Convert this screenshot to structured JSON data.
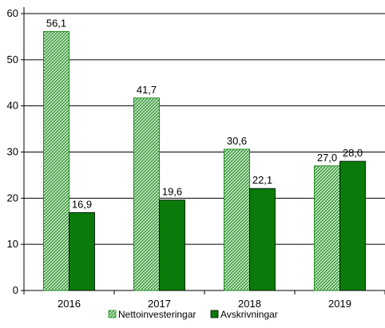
{
  "chart_data": {
    "type": "bar",
    "categories": [
      "2016",
      "2017",
      "2018",
      "2019"
    ],
    "series": [
      {
        "name": "Nettoinvesteringar",
        "values": [
          56.1,
          41.7,
          30.6,
          27.0
        ],
        "labels": [
          "56,1",
          "41,7",
          "30,6",
          "27,0"
        ],
        "color": "#1e8c1e",
        "fill": "hatched"
      },
      {
        "name": "Avskrivningar",
        "values": [
          16.9,
          19.6,
          22.1,
          28.0
        ],
        "labels": [
          "16,9",
          "19,6",
          "22,1",
          "28,0"
        ],
        "color": "#0a7a0a",
        "fill": "solid"
      }
    ],
    "yticks": [
      "0",
      "10",
      "20",
      "30",
      "40",
      "50",
      "60"
    ],
    "ylim": [
      0,
      60
    ],
    "grid": true,
    "legend_position": "bottom"
  }
}
